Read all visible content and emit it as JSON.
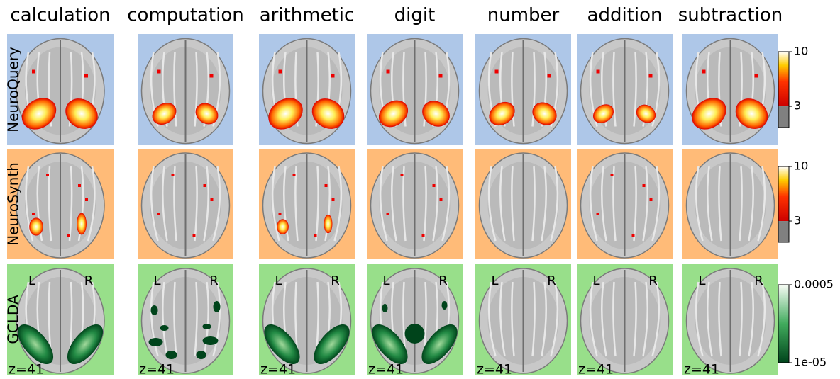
{
  "columns": [
    "calculation",
    "computation",
    "arithmetic",
    "digit",
    "number",
    "addition",
    "subtraction"
  ],
  "rows": [
    {
      "label": "NeuroQuery",
      "colorbar": {
        "top": "10",
        "bottom": "3"
      }
    },
    {
      "label": "NeuroSynth",
      "colorbar": {
        "top": "10",
        "bottom": "3"
      }
    },
    {
      "label": "GCLDA",
      "colorbar": {
        "top": "0.0005",
        "bottom": "1e-05"
      }
    }
  ],
  "orientation": {
    "left": "L",
    "right": "R"
  },
  "slice": "z=41"
}
